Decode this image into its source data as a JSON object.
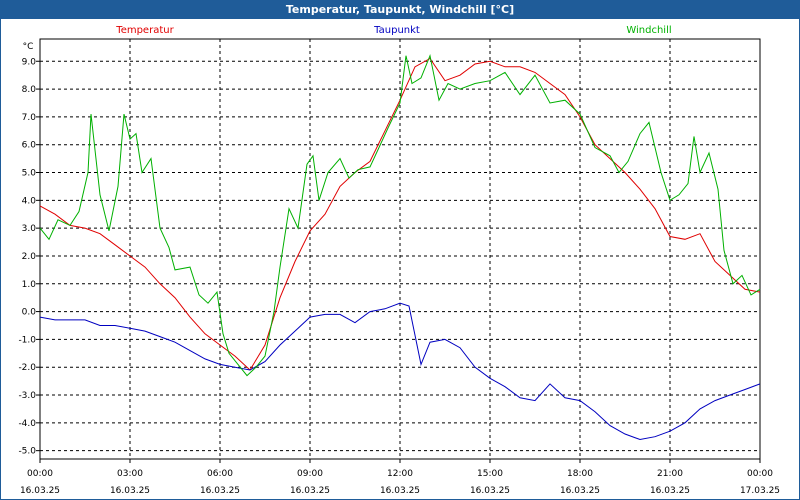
{
  "window": {
    "title": "Temperatur, Taupunkt, Windchill [°C]"
  },
  "chart_data": {
    "type": "line",
    "title": "Temperatur, Taupunkt, Windchill [°C]",
    "ylabel": "°C",
    "xlabel": "",
    "ylim": [
      -5.3,
      9.8
    ],
    "xlim": [
      0,
      24
    ],
    "grid": true,
    "legend_placement": "top",
    "y_ticks": [
      "9.0",
      "8.0",
      "7.0",
      "6.0",
      "5.0",
      "4.0",
      "3.0",
      "2.0",
      "1.0",
      "0.0",
      "-1.0",
      "-2.0",
      "-3.0",
      "-4.0",
      "-5.0"
    ],
    "y_tick_values": [
      9,
      8,
      7,
      6,
      5,
      4,
      3,
      2,
      1,
      0,
      -1,
      -2,
      -3,
      -4,
      -5
    ],
    "x_ticks": [
      {
        "time": "00:00",
        "date": "16.03.25"
      },
      {
        "time": "03:00",
        "date": "16.03.25"
      },
      {
        "time": "06:00",
        "date": "16.03.25"
      },
      {
        "time": "09:00",
        "date": "16.03.25"
      },
      {
        "time": "12:00",
        "date": "16.03.25"
      },
      {
        "time": "15:00",
        "date": "16.03.25"
      },
      {
        "time": "18:00",
        "date": "16.03.25"
      },
      {
        "time": "21:00",
        "date": "16.03.25"
      },
      {
        "time": "00:00",
        "date": "17.03.25"
      }
    ],
    "series": [
      {
        "name": "Temperatur",
        "color": "#e00000",
        "points": [
          [
            0,
            3.8
          ],
          [
            0.5,
            3.5
          ],
          [
            1,
            3.1
          ],
          [
            1.5,
            3.0
          ],
          [
            2,
            2.8
          ],
          [
            2.5,
            2.4
          ],
          [
            3,
            2.0
          ],
          [
            3.5,
            1.6
          ],
          [
            4,
            1.0
          ],
          [
            4.5,
            0.5
          ],
          [
            5,
            -0.2
          ],
          [
            5.5,
            -0.8
          ],
          [
            6,
            -1.2
          ],
          [
            6.5,
            -1.6
          ],
          [
            7,
            -2.1
          ],
          [
            7.5,
            -1.2
          ],
          [
            8,
            0.5
          ],
          [
            8.5,
            1.8
          ],
          [
            9,
            2.9
          ],
          [
            9.5,
            3.5
          ],
          [
            10,
            4.5
          ],
          [
            10.5,
            5.0
          ],
          [
            11,
            5.4
          ],
          [
            11.5,
            6.5
          ],
          [
            12,
            7.6
          ],
          [
            12.5,
            8.8
          ],
          [
            13,
            9.1
          ],
          [
            13.5,
            8.3
          ],
          [
            14,
            8.5
          ],
          [
            14.5,
            8.9
          ],
          [
            15,
            9.0
          ],
          [
            15.5,
            8.8
          ],
          [
            16,
            8.8
          ],
          [
            16.5,
            8.6
          ],
          [
            17,
            8.2
          ],
          [
            17.5,
            7.8
          ],
          [
            18,
            7.0
          ],
          [
            18.5,
            6.0
          ],
          [
            19,
            5.5
          ],
          [
            19.5,
            5.0
          ],
          [
            20,
            4.4
          ],
          [
            20.5,
            3.7
          ],
          [
            21,
            2.7
          ],
          [
            21.5,
            2.6
          ],
          [
            22,
            2.8
          ],
          [
            22.5,
            1.8
          ],
          [
            23,
            1.3
          ],
          [
            23.5,
            0.8
          ],
          [
            24,
            0.7
          ]
        ]
      },
      {
        "name": "Taupunkt",
        "color": "#0000c0",
        "points": [
          [
            0,
            -0.2
          ],
          [
            0.5,
            -0.3
          ],
          [
            1,
            -0.3
          ],
          [
            1.5,
            -0.3
          ],
          [
            2,
            -0.5
          ],
          [
            2.5,
            -0.5
          ],
          [
            3,
            -0.6
          ],
          [
            3.5,
            -0.7
          ],
          [
            4,
            -0.9
          ],
          [
            4.5,
            -1.1
          ],
          [
            5,
            -1.4
          ],
          [
            5.5,
            -1.7
          ],
          [
            6,
            -1.9
          ],
          [
            6.5,
            -2.0
          ],
          [
            7,
            -2.1
          ],
          [
            7.5,
            -1.8
          ],
          [
            8,
            -1.2
          ],
          [
            8.5,
            -0.7
          ],
          [
            9,
            -0.2
          ],
          [
            9.5,
            -0.1
          ],
          [
            10,
            -0.1
          ],
          [
            10.5,
            -0.4
          ],
          [
            11,
            0.0
          ],
          [
            11.5,
            0.1
          ],
          [
            12,
            0.3
          ],
          [
            12.3,
            0.2
          ],
          [
            12.7,
            -1.9
          ],
          [
            13,
            -1.1
          ],
          [
            13.5,
            -1.0
          ],
          [
            14,
            -1.3
          ],
          [
            14.5,
            -2.0
          ],
          [
            15,
            -2.4
          ],
          [
            15.5,
            -2.7
          ],
          [
            16,
            -3.1
          ],
          [
            16.5,
            -3.2
          ],
          [
            17,
            -2.6
          ],
          [
            17.5,
            -3.1
          ],
          [
            18,
            -3.2
          ],
          [
            18.5,
            -3.6
          ],
          [
            19,
            -4.1
          ],
          [
            19.5,
            -4.4
          ],
          [
            20,
            -4.6
          ],
          [
            20.5,
            -4.5
          ],
          [
            21,
            -4.3
          ],
          [
            21.5,
            -4.0
          ],
          [
            22,
            -3.5
          ],
          [
            22.5,
            -3.2
          ],
          [
            23,
            -3.0
          ],
          [
            23.5,
            -2.8
          ],
          [
            24,
            -2.6
          ]
        ]
      },
      {
        "name": "Windchill",
        "color": "#00b000",
        "points": [
          [
            0,
            3.0
          ],
          [
            0.3,
            2.6
          ],
          [
            0.6,
            3.3
          ],
          [
            1,
            3.1
          ],
          [
            1.3,
            3.6
          ],
          [
            1.6,
            5.0
          ],
          [
            1.7,
            7.1
          ],
          [
            2,
            4.2
          ],
          [
            2.3,
            2.9
          ],
          [
            2.6,
            4.5
          ],
          [
            2.8,
            7.1
          ],
          [
            3,
            6.2
          ],
          [
            3.2,
            6.4
          ],
          [
            3.4,
            5.0
          ],
          [
            3.7,
            5.5
          ],
          [
            4,
            3.0
          ],
          [
            4.3,
            2.3
          ],
          [
            4.5,
            1.5
          ],
          [
            5,
            1.6
          ],
          [
            5.3,
            0.6
          ],
          [
            5.6,
            0.3
          ],
          [
            5.9,
            0.7
          ],
          [
            6.1,
            -0.8
          ],
          [
            6.3,
            -1.5
          ],
          [
            6.6,
            -1.9
          ],
          [
            6.9,
            -2.3
          ],
          [
            7.2,
            -2.0
          ],
          [
            7.5,
            -1.6
          ],
          [
            7.8,
            0.0
          ],
          [
            8,
            1.6
          ],
          [
            8.3,
            3.7
          ],
          [
            8.6,
            3.0
          ],
          [
            8.9,
            5.3
          ],
          [
            9.1,
            5.6
          ],
          [
            9.3,
            4.0
          ],
          [
            9.6,
            5.0
          ],
          [
            10,
            5.5
          ],
          [
            10.3,
            4.8
          ],
          [
            10.6,
            5.1
          ],
          [
            11,
            5.2
          ],
          [
            11.3,
            5.9
          ],
          [
            11.6,
            6.6
          ],
          [
            12,
            7.5
          ],
          [
            12.2,
            9.2
          ],
          [
            12.4,
            8.2
          ],
          [
            12.7,
            8.4
          ],
          [
            13,
            9.2
          ],
          [
            13.3,
            7.6
          ],
          [
            13.6,
            8.2
          ],
          [
            14,
            8.0
          ],
          [
            14.5,
            8.2
          ],
          [
            15,
            8.3
          ],
          [
            15.5,
            8.6
          ],
          [
            16,
            7.8
          ],
          [
            16.5,
            8.5
          ],
          [
            17,
            7.5
          ],
          [
            17.5,
            7.6
          ],
          [
            18,
            7.1
          ],
          [
            18.5,
            5.9
          ],
          [
            19,
            5.6
          ],
          [
            19.3,
            5.0
          ],
          [
            19.6,
            5.4
          ],
          [
            20,
            6.4
          ],
          [
            20.3,
            6.8
          ],
          [
            20.7,
            5.0
          ],
          [
            21,
            4.0
          ],
          [
            21.3,
            4.2
          ],
          [
            21.6,
            4.6
          ],
          [
            21.8,
            6.3
          ],
          [
            22,
            5.0
          ],
          [
            22.3,
            5.7
          ],
          [
            22.6,
            4.4
          ],
          [
            22.8,
            2.2
          ],
          [
            23.1,
            1.0
          ],
          [
            23.4,
            1.3
          ],
          [
            23.7,
            0.6
          ],
          [
            24,
            0.8
          ]
        ]
      }
    ]
  }
}
